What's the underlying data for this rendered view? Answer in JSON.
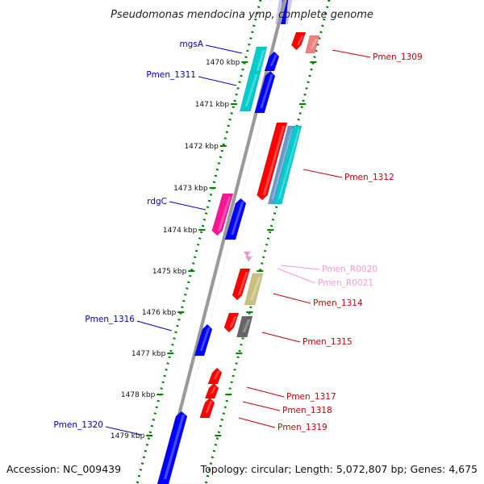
{
  "title": "Pseudomonas mendocina ymp, complete genome",
  "footer": {
    "accession": "Accession: NC_009439",
    "topology": "Topology: circular; Length: 5,072,807 bp; Genes: 4,675"
  },
  "ticks": [
    {
      "label": "1470 kbp"
    },
    {
      "label": "1471 kbp"
    },
    {
      "label": "1472 kbp"
    },
    {
      "label": "1473 kbp"
    },
    {
      "label": "1474 kbp"
    },
    {
      "label": "1475 kbp"
    },
    {
      "label": "1476 kbp"
    },
    {
      "label": "1477 kbp"
    },
    {
      "label": "1478 kbp"
    },
    {
      "label": "1479 kbp"
    }
  ],
  "labels": [
    {
      "text": "mgsA",
      "color": "#0000cc"
    },
    {
      "text": "Pmen_1311",
      "color": "#0000cc"
    },
    {
      "text": "rdgC",
      "color": "#0000cc"
    },
    {
      "text": "Pmen_1316",
      "color": "#0000cc"
    },
    {
      "text": "Pmen_1320",
      "color": "#0000cc"
    },
    {
      "text": "Pmen_1309",
      "color": "#cc0000"
    },
    {
      "text": "Pmen_1312",
      "color": "#cc0000"
    },
    {
      "text": "Pmen_R0020",
      "color": "#ff99cc"
    },
    {
      "text": "Pmen_R0021",
      "color": "#ff99cc"
    },
    {
      "text": "Pmen_1314",
      "color": "#cc0000"
    },
    {
      "text": "Pmen_1315",
      "color": "#cc0000"
    },
    {
      "text": "Pmen_1317",
      "color": "#cc0000"
    },
    {
      "text": "Pmen_1318",
      "color": "#cc0000"
    },
    {
      "text": "Pmen_1319",
      "color": "#cc0000"
    }
  ],
  "colors": {
    "backbone": "#999999",
    "tickGreen": "#008000",
    "blue": "#0000ff",
    "red": "#ff0000",
    "cyan": "#00cccc",
    "magenta": "#ff1493",
    "olive": "#c8c080",
    "gray": "#666666",
    "salmon": "#f08080",
    "pink": "#ff88cc"
  }
}
